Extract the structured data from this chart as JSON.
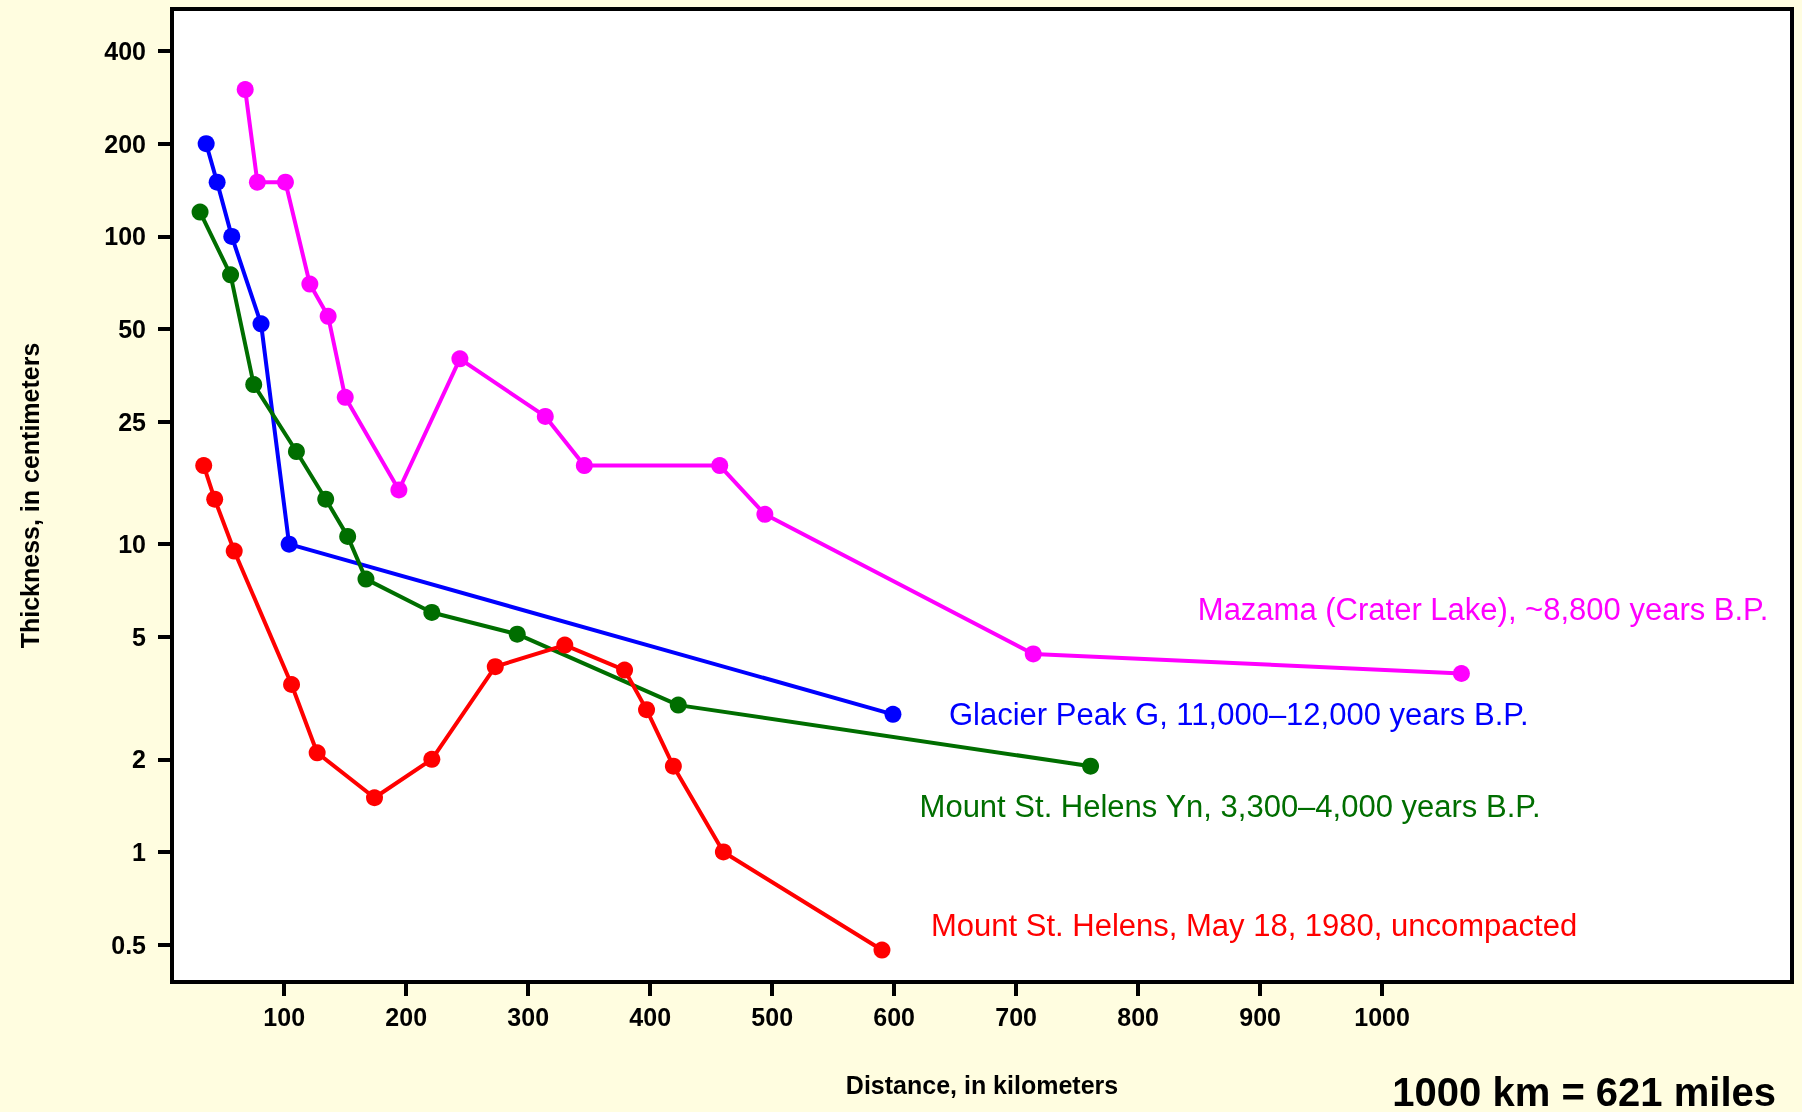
{
  "chart_data": {
    "type": "line",
    "xlabel": "Distance, in kilometers",
    "ylabel": "Thickness, in centimeters",
    "annotations": [
      "1000 km = 621 miles"
    ],
    "log": "y",
    "grid": false,
    "legend": false,
    "marker": "circle",
    "line_style": "solid",
    "xlim": [
      8,
      1336
    ],
    "xticks": [
      100,
      200,
      300,
      400,
      500,
      600,
      700,
      800,
      900,
      1000
    ],
    "ylim": [
      0.378,
      548
    ],
    "yticks": [
      0.5,
      1,
      2,
      5,
      10,
      25,
      50,
      100,
      200,
      400
    ],
    "series": [
      {
        "name": "Mazama (Crater Lake), ~8,800 years B.P.",
        "color": "#ff00ff",
        "x": [
          68,
          78,
          101,
          121,
          136,
          150,
          194,
          244,
          314,
          346,
          457,
          494,
          714,
          1065
        ],
        "values": [
          300,
          150,
          150,
          70,
          55,
          30,
          15,
          40,
          26,
          18,
          18,
          12.5,
          4.4,
          3.8
        ]
      },
      {
        "name": "Glacier Peak G, 11,000–12,000 years B.P.",
        "color": "#0000ff",
        "x": [
          36,
          45,
          57,
          81,
          104,
          599
        ],
        "values": [
          200,
          150,
          100,
          52,
          10,
          2.8
        ]
      },
      {
        "name": "Mount St. Helens Yn, 3,300–4,000 years B.P.",
        "color": "#006e00",
        "x": [
          31,
          56,
          75,
          110,
          134,
          152,
          167,
          221,
          291,
          423,
          761
        ],
        "values": [
          120,
          75,
          33,
          20,
          14,
          10.6,
          7.7,
          6,
          5.1,
          3,
          1.9
        ]
      },
      {
        "name": "Mount St. Helens, May 18, 1980, uncompacted",
        "color": "#ff0000",
        "x": [
          34,
          43,
          59,
          106,
          127,
          174,
          221,
          273,
          330,
          379,
          397,
          419,
          460,
          590
        ],
        "values": [
          18,
          14,
          9.5,
          3.5,
          2.1,
          1.5,
          2,
          4,
          4.7,
          3.9,
          2.9,
          1.9,
          1,
          0.48
        ]
      }
    ]
  }
}
